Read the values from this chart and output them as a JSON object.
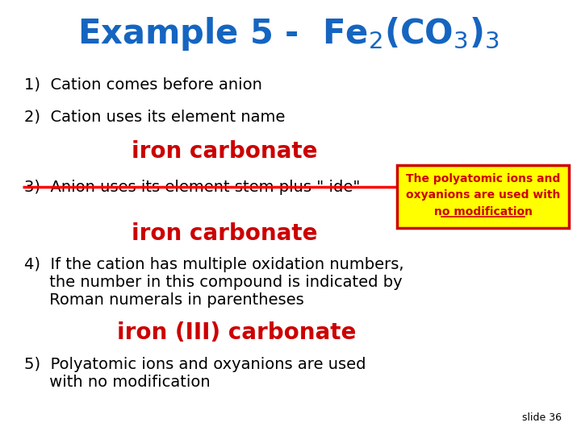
{
  "bg_color": "#ffffff",
  "title_color": "#1565C0",
  "body_color": "#000000",
  "red_color": "#cc0000",
  "yellow_bg": "#ffff00",
  "red_border": "#cc0000",
  "item1": "1)  Cation comes before anion",
  "item2": "2)  Cation uses its element name",
  "iron_carbonate_1": "iron carbonate",
  "item3_struck": "3)  Anion uses its element stem plus \" ide\"",
  "iron_carbonate_2": "iron carbonate",
  "item4_line1": "4)  If the cation has multiple oxidation numbers,",
  "item4_line2": "     the number in this compound is indicated by",
  "item4_line3": "     Roman numerals in parentheses",
  "iron_III": "iron (III) carbonate",
  "item5_line1": "5)  Polyatomic ions and oxyanions are used",
  "item5_line2": "     with no modification",
  "box_line1": "The polyatomic ions and",
  "box_line2": "oxyanions are used with",
  "box_line3": "no modification",
  "slide_label": "slide 36"
}
